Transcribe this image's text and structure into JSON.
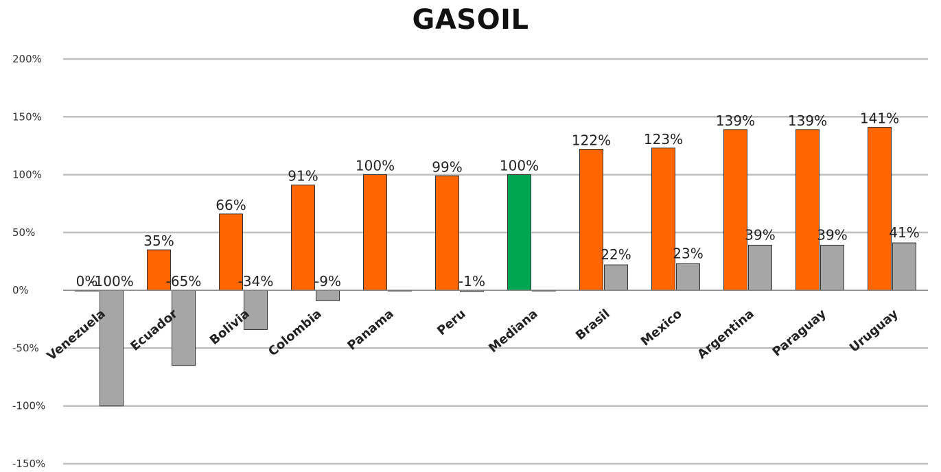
{
  "chart_data": {
    "type": "bar",
    "title": "GASOIL",
    "xlabel": "",
    "ylabel": "",
    "ylim": [
      -150,
      200
    ],
    "yticks": [
      200,
      150,
      100,
      50,
      0,
      -50,
      -100,
      -150
    ],
    "ytick_labels": [
      "200%",
      "150%",
      "100%",
      "50%",
      "0%",
      "-50%",
      "-100%",
      "-150%"
    ],
    "grid": true,
    "legend": "none",
    "categories": [
      "Venezuela",
      "Ecuador",
      "Bolivia",
      "Colombia",
      "Panama",
      "Peru",
      "Mediana",
      "Brasil",
      "Mexico",
      "Argentina",
      "Paraguay",
      "Uruguay"
    ],
    "series": [
      {
        "color": "#ff6600",
        "highlight": {
          "index": 6,
          "color": "#00a651"
        },
        "values": [
          0,
          35,
          66,
          91,
          100,
          99,
          100,
          122,
          123,
          139,
          139,
          141
        ],
        "labels": [
          "0%",
          "35%",
          "66%",
          "91%",
          "100%",
          "99%",
          "100%",
          "122%",
          "123%",
          "139%",
          "139%",
          "141%"
        ]
      },
      {
        "color": "#a6a6a6",
        "values": [
          -100,
          -65,
          -34,
          -9,
          0,
          -1,
          0,
          22,
          23,
          39,
          39,
          41
        ],
        "labels": [
          "-100%",
          "-65%",
          "-34%",
          "-9%",
          "",
          "-1%",
          "",
          "22%",
          "23%",
          "39%",
          "39%",
          "41%"
        ]
      }
    ]
  }
}
